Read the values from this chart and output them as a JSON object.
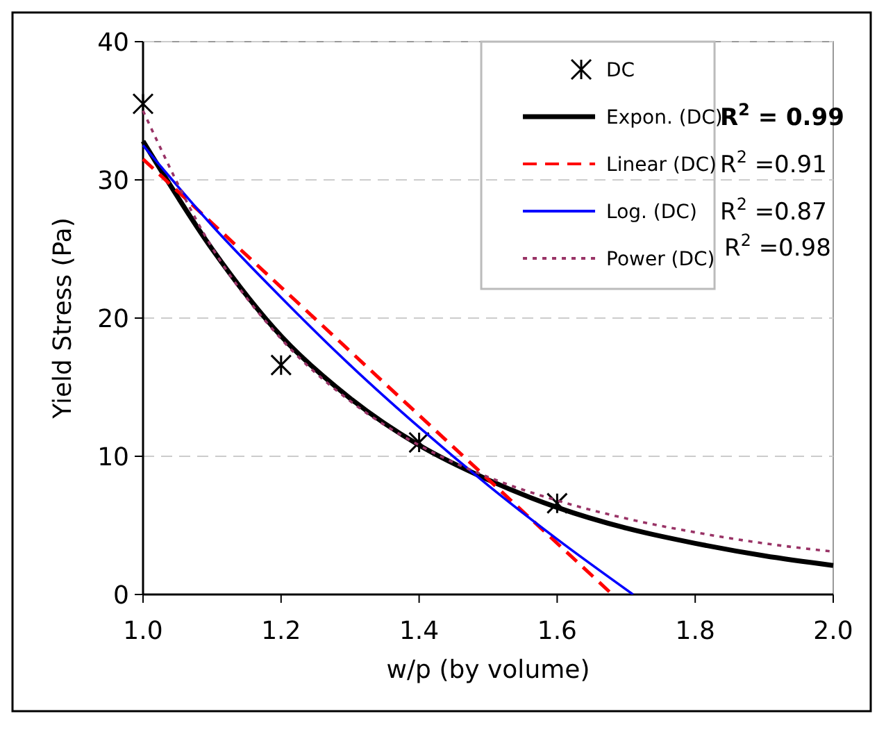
{
  "chart_data": {
    "type": "line",
    "xlabel": "w/p (by volume)",
    "ylabel": "Yield Stress (Pa)",
    "xlim": [
      1.0,
      2.0
    ],
    "xticks": [
      {
        "value": 1.0,
        "label": "1.0"
      },
      {
        "value": 1.2,
        "label": "1.2"
      },
      {
        "value": 1.4,
        "label": "1.4"
      },
      {
        "value": 1.6,
        "label": "1.6"
      },
      {
        "value": 1.8,
        "label": "1.8"
      },
      {
        "value": 2.0,
        "label": "2.0"
      }
    ],
    "ylim": [
      0,
      40
    ],
    "yticks": [
      0,
      10,
      20,
      30,
      40
    ],
    "grid": "y",
    "legend": "top right",
    "annotations": [
      "R$^{2}$ = 0.99",
      "R$^{2}$ =0.91",
      "R$^{2}$ =0.87",
      "R$^{2}$ =0.98"
    ],
    "series": [
      {
        "name": "DC",
        "type": "scatter",
        "marker": "cross",
        "color": "#000000",
        "x": [
          1.0,
          1.2,
          1.4,
          1.6
        ],
        "values": [
          35.5,
          16.6,
          11.0,
          6.6
        ]
      },
      {
        "name": "Expon. (DC)",
        "type": "line",
        "line_style": "solid",
        "color": "#000000",
        "x": [
          1.0,
          1.1,
          1.2,
          1.3,
          1.4,
          1.5,
          1.6,
          1.7,
          1.8,
          1.9,
          2.0
        ],
        "values": [
          32.8,
          25.0,
          18.7,
          14.2,
          10.8,
          8.3,
          6.3,
          4.8,
          3.7,
          2.8,
          2.1
        ]
      },
      {
        "name": "Linear (DC)",
        "type": "line",
        "line_style": "dashed",
        "color": "#ff0000",
        "x": [
          1.0,
          1.68
        ],
        "values": [
          31.5,
          0
        ]
      },
      {
        "name": "Log. (DC)",
        "type": "line",
        "line_style": "solid",
        "color": "#0000ff",
        "x": [
          1.0,
          1.1,
          1.2,
          1.3,
          1.4,
          1.5,
          1.6,
          1.71
        ],
        "values": [
          32.5,
          26.7,
          21.5,
          16.6,
          12.1,
          7.9,
          4.0,
          0
        ]
      },
      {
        "name": "Power (DC)",
        "type": "line",
        "line_style": "dotted",
        "color": "#993366",
        "x": [
          1.0,
          1.1,
          1.2,
          1.3,
          1.4,
          1.5,
          1.6,
          1.7,
          1.8,
          1.9,
          2.0
        ],
        "values": [
          35.0,
          25.1,
          18.5,
          14.0,
          10.8,
          8.5,
          6.8,
          5.5,
          4.5,
          3.7,
          3.1
        ]
      }
    ]
  }
}
